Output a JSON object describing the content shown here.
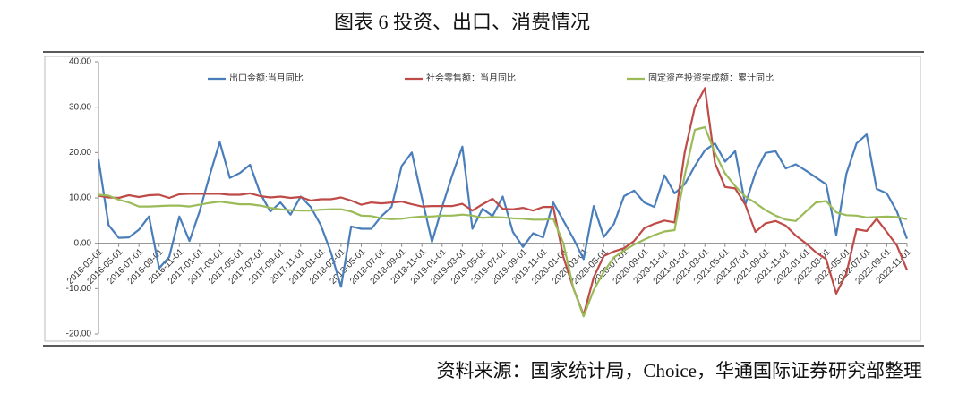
{
  "chart_data": {
    "type": "line",
    "title": "图表 6 投资、出口、消费情况",
    "source": "资料来源：国家统计局，Choice，华通国际证券研究部整理",
    "categories": [
      "2016-03-01",
      null,
      "2016-05-01",
      null,
      "2016-07-01",
      null,
      "2016-09-01",
      null,
      "2016-11-01",
      null,
      "2017-01-01",
      null,
      "2017-03-01",
      null,
      "2017-05-01",
      null,
      "2017-07-01",
      null,
      "2017-09-01",
      null,
      "2017-11-01",
      null,
      "2018-01-01",
      null,
      "2018-03-01",
      null,
      "2018-05-01",
      null,
      "2018-07-01",
      null,
      "2018-09-01",
      null,
      "2018-11-01",
      null,
      "2019-01-01",
      null,
      "2019-03-01",
      null,
      "2019-05-01",
      null,
      "2019-07-01",
      null,
      "2019-09-01",
      null,
      "2019-11-01",
      null,
      "2020-01-01",
      null,
      "2020-03-01",
      null,
      "2020-05-01",
      null,
      "2020-07-01",
      null,
      "2020-09-01",
      null,
      "2020-11-01",
      null,
      "2021-01-01",
      null,
      "2021-03-01",
      null,
      "2021-05-01",
      null,
      "2021-07-01",
      null,
      "2021-09-01",
      null,
      "2021-11-01",
      null,
      "2022-01-01",
      null,
      "2022-03-01",
      null,
      "2022-05-01",
      null,
      "2022-07-01",
      null,
      "2022-09-01",
      null,
      "2022-11-01"
    ],
    "series": [
      {
        "name": "出口金额:当月同比",
        "color": "#4a7ebb",
        "values": [
          18.5,
          4,
          1.2,
          1.3,
          3,
          5.9,
          -5.5,
          -3,
          5.9,
          0.5,
          7,
          15,
          22.3,
          14.4,
          15.5,
          17.3,
          11,
          7,
          9,
          6.3,
          10.3,
          8,
          4,
          -2,
          -9.6,
          3.7,
          3.2,
          3.2,
          6,
          8,
          17,
          20,
          10,
          0.3,
          8,
          15,
          21.3,
          3.2,
          7.6,
          6,
          10.3,
          2.5,
          -0.8,
          2.2,
          1.3,
          9,
          5,
          1,
          -3.5,
          8.2,
          1.4,
          4.3,
          10.4,
          11.6,
          9,
          8,
          15,
          11,
          13,
          17,
          20.5,
          22,
          18,
          20.3,
          8.5,
          15.5,
          19.9,
          20.3,
          16.5,
          17.4,
          16,
          14.5,
          13,
          1.8,
          15.3,
          22,
          24,
          12,
          11,
          7,
          1
        ]
      },
      {
        "name": "社会零售额：当月同比",
        "color": "#be4b48",
        "values": [
          10.5,
          10.1,
          10,
          10.6,
          10.2,
          10.6,
          10.7,
          10,
          10.8,
          10.9,
          10.9,
          10.9,
          10.9,
          10.7,
          10.7,
          11,
          10.4,
          10.1,
          10.3,
          10,
          10.2,
          9.4,
          9.7,
          9.7,
          10.1,
          9.4,
          8.5,
          9,
          8.8,
          9,
          9.2,
          8.6,
          8.1,
          8.2,
          8.2,
          8.2,
          8.7,
          7.2,
          8.6,
          9.8,
          7.6,
          7.5,
          7.8,
          7.2,
          8,
          8,
          -3,
          -10,
          -15.8,
          -7.5,
          -2.8,
          -1.8,
          -1.1,
          0.5,
          3.3,
          4.3,
          5,
          4.6,
          20,
          30,
          34.2,
          17.7,
          12.4,
          12.1,
          8.5,
          2.5,
          4.4,
          4.9,
          3.9,
          1.7,
          0,
          -2,
          -3.5,
          -11.1,
          -6.7,
          3.1,
          2.7,
          5.4,
          2.5,
          -0.5,
          -5.9
        ]
      },
      {
        "name": "固定资产投资完成额：累计同比",
        "color": "#9bbb59",
        "values": [
          10.7,
          10.5,
          9.6,
          9,
          8.1,
          8.1,
          8.2,
          8.3,
          8.3,
          8.1,
          8.5,
          8.9,
          9.2,
          8.9,
          8.6,
          8.6,
          8.3,
          7.8,
          7.5,
          7.3,
          7.2,
          7.2,
          7.4,
          7.5,
          7.5,
          7,
          6.1,
          6,
          5.5,
          5.3,
          5.4,
          5.7,
          5.9,
          5.9,
          6.1,
          6.1,
          6.3,
          6.1,
          5.6,
          5.8,
          5.7,
          5.5,
          5.4,
          5.2,
          5.2,
          5.4,
          0,
          -10,
          -16.1,
          -10.3,
          -6.3,
          -3.1,
          -1.6,
          -0.3,
          0.8,
          1.8,
          2.6,
          2.9,
          15,
          25,
          25.6,
          19.9,
          15.4,
          12.6,
          10.3,
          8.9,
          7.3,
          6.1,
          5.2,
          4.9,
          7,
          9,
          9.3,
          6.8,
          6.2,
          6.1,
          5.7,
          5.8,
          5.9,
          5.8,
          5.3
        ]
      }
    ],
    "ylim": [
      -20,
      40
    ],
    "yticks": [
      {
        "value": -20,
        "label": "-20.00"
      },
      {
        "value": -10,
        "label": "-10.00"
      },
      {
        "value": 0,
        "label": "0.00"
      },
      {
        "value": 10,
        "label": "10.00"
      },
      {
        "value": 20,
        "label": "20.00"
      },
      {
        "value": 30,
        "label": "30.00"
      },
      {
        "value": 40,
        "label": "40.00"
      }
    ],
    "legend": "top",
    "grid": false
  }
}
